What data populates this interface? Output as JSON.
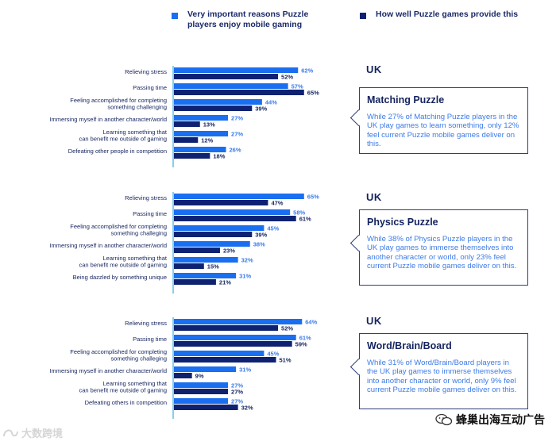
{
  "legend": {
    "important_label": "Very important reasons Puzzle players enjoy mobile gaming",
    "provide_label": "How well Puzzle games provide this"
  },
  "colors": {
    "important": "#1a6ef0",
    "provide": "#0f2272",
    "text_dark": "#14235e",
    "text_blue": "#3c7be8",
    "axis": "#3ab0d8"
  },
  "chart_data": [
    {
      "type": "bar",
      "orientation": "horizontal",
      "country": "UK",
      "categories": [
        "Relieving stress",
        "Passing time",
        "Feeling accomplished for completing something challenging",
        "Immersing myself in another character/world",
        "Learning something that can benefit me outside of gaming",
        "Defeating other people in competition"
      ],
      "category_lines": [
        [
          "Relieving stress"
        ],
        [
          "Passing time"
        ],
        [
          "Feeling accomplished for completing",
          "something challenging"
        ],
        [
          "Immersing myself in another character/world"
        ],
        [
          "Learning something that",
          "can benefit me outside of gaming"
        ],
        [
          "Defeating other people in competition"
        ]
      ],
      "series": [
        {
          "name": "Very important reasons Puzzle players enjoy mobile gaming",
          "values": [
            62,
            57,
            44,
            27,
            27,
            26
          ]
        },
        {
          "name": "How well Puzzle games provide this",
          "values": [
            52,
            65,
            39,
            13,
            12,
            18
          ]
        }
      ],
      "unit": "%",
      "callout": {
        "title": "Matching Puzzle",
        "text": "While 27% of Matching Puzzle players in the UK play games to learn something, only 12% feel current Puzzle mobile games deliver on this."
      }
    },
    {
      "type": "bar",
      "orientation": "horizontal",
      "country": "UK",
      "categories": [
        "Relieving stress",
        "Passing time",
        "Feeling accomplished for completing something challeging",
        "Immersing myself in another character/world",
        "Learning something that can benefit me outside of gaming",
        "Being dazzled by something unique"
      ],
      "category_lines": [
        [
          "Relieving stress"
        ],
        [
          "Passing time"
        ],
        [
          "Feeling accomplished for completing",
          "something challeging"
        ],
        [
          "Immersing myself in another character/world"
        ],
        [
          "Learning something that",
          "can benefit me outside of gaming"
        ],
        [
          "Being dazzled by something unique"
        ]
      ],
      "series": [
        {
          "name": "Very important reasons Puzzle players enjoy mobile gaming",
          "values": [
            65,
            58,
            45,
            38,
            32,
            31
          ]
        },
        {
          "name": "How well Puzzle games provide this",
          "values": [
            47,
            61,
            39,
            23,
            15,
            21
          ]
        }
      ],
      "unit": "%",
      "callout": {
        "title": "Physics Puzzle",
        "text": "While 38% of Physics Puzzle players in the UK play games to immerse themselves into another character or world, only 23% feel current Puzzle mobile games deliver on this."
      }
    },
    {
      "type": "bar",
      "orientation": "horizontal",
      "country": "UK",
      "categories": [
        "Relieving stress",
        "Passing time",
        "Feeling accomplished for completing something challeging",
        "Immersing myself in another character/world",
        "Learning something that can benefit me outside of gaming",
        "Defeating others in competition"
      ],
      "category_lines": [
        [
          "Relieving stress"
        ],
        [
          "Passing time"
        ],
        [
          "Feeling accomplished for completing",
          "something challeging"
        ],
        [
          "Immersing myself in another character/world"
        ],
        [
          "Learning something that",
          "can benefit me outside of gaming"
        ],
        [
          "Defeating others in competition"
        ]
      ],
      "series": [
        {
          "name": "Very important reasons Puzzle players enjoy mobile gaming",
          "values": [
            64,
            61,
            45,
            31,
            27,
            27
          ]
        },
        {
          "name": "How well Puzzle games provide this",
          "values": [
            52,
            59,
            51,
            9,
            27,
            32
          ]
        }
      ],
      "unit": "%",
      "callout": {
        "title": "Word/Brain/Board",
        "text": "While 31% of Word/Brain/Board players in the UK play games to immerse themselves into another character or world, only 9% feel current Puzzle mobile games deliver on this."
      }
    }
  ],
  "watermark": {
    "right_text": "蜂巢出海互动广告",
    "right_icon": "wechat-icon",
    "left_text": "大数跨境",
    "left_icon": "logo-icon"
  }
}
